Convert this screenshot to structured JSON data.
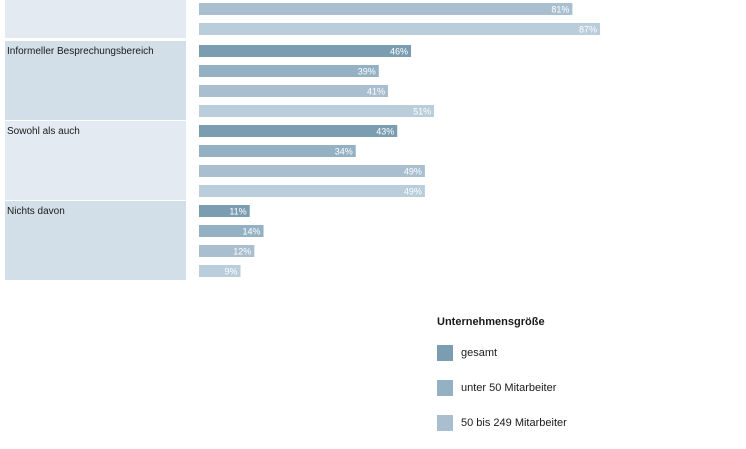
{
  "chart_data": {
    "type": "bar",
    "orientation": "horizontal",
    "categories": [
      "",
      "Informeller Besprechungsbereich",
      "Sowohl als auch",
      "Nichts davon"
    ],
    "series": [
      {
        "name": "gesamt",
        "values": [
          null,
          46,
          43,
          11
        ]
      },
      {
        "name": "unter 50 Mitarbeiter",
        "values": [
          null,
          39,
          34,
          14
        ]
      },
      {
        "name": "",
        "values": [
          81,
          41,
          49,
          12
        ]
      },
      {
        "name": "",
        "values": [
          87,
          51,
          49,
          9
        ]
      }
    ],
    "value_labels": [
      [
        null,
        "46%",
        "43%",
        "11%"
      ],
      [
        null,
        "39%",
        "34%",
        "14%"
      ],
      [
        "81%",
        "41%",
        "49%",
        "12%"
      ],
      [
        "87%",
        "51%",
        "49%",
        "9%"
      ]
    ],
    "colors": [
      "#7a9db2",
      "#93b1c3",
      "#a9bfcf",
      "#b9cdda"
    ],
    "band_colors": [
      "#e3eaf1",
      "#d2dfe8"
    ],
    "xlim": [
      0,
      100
    ],
    "legend_title": "Unternehmensgröße",
    "legend_position": "bottom-right",
    "grid": false
  },
  "legend": {
    "title": "Unternehmensgröße",
    "items": [
      {
        "label": "gesamt",
        "color": "#7a9db2"
      },
      {
        "label": "unter 50 Mitarbeiter",
        "color": "#93b1c3"
      },
      {
        "label": "50 bis 249 Mitarbeiter",
        "color": "#a9bfcf"
      }
    ]
  }
}
